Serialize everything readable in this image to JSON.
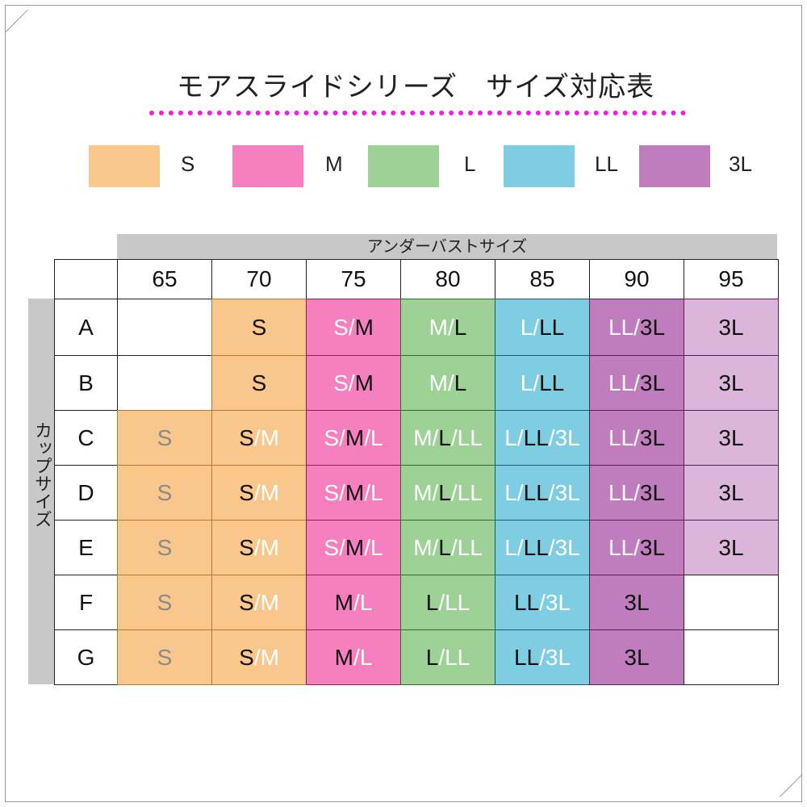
{
  "title": "モアスライドシリーズ　サイズ対応表",
  "legend": [
    {
      "label": "S",
      "color": "#f9c78c"
    },
    {
      "label": "M",
      "color": "#f67fbf"
    },
    {
      "label": "L",
      "color": "#9dd196"
    },
    {
      "label": "LL",
      "color": "#7fcde2"
    },
    {
      "label": "3L",
      "color": "#c07dbd"
    }
  ],
  "table": {
    "column_group_label": "アンダーバストサイズ",
    "row_group_label": "カップサイズ",
    "columns": [
      {
        "label": "65",
        "primary": "S",
        "color": "#f9c78c",
        "border": "#b07a30",
        "muted": true
      },
      {
        "label": "70",
        "primary": "S",
        "color": "#f9c78c",
        "border": "#b07a30"
      },
      {
        "label": "75",
        "primary": "M",
        "color": "#f67fbf",
        "border": "#8a1f5a"
      },
      {
        "label": "80",
        "primary": "L",
        "color": "#9dd196",
        "border": "#2f6a2a"
      },
      {
        "label": "85",
        "primary": "LL",
        "color": "#7fcde2",
        "border": "#1f5a6a"
      },
      {
        "label": "90",
        "primary": "3L",
        "color": "#c07dbd",
        "border": "#5a1f5a"
      },
      {
        "label": "95",
        "primary": "3L",
        "color": "#dcb6da",
        "border": "#5a1f5a"
      }
    ],
    "rows": [
      {
        "label": "A",
        "cells": [
          "",
          "S",
          "S/M",
          "M/L",
          "L/LL",
          "LL/3L",
          "3L"
        ]
      },
      {
        "label": "B",
        "cells": [
          "",
          "S",
          "S/M",
          "M/L",
          "L/LL",
          "LL/3L",
          "3L"
        ]
      },
      {
        "label": "C",
        "cells": [
          "S",
          "S/M",
          "S/M/L",
          "M/L/LL",
          "L/LL/3L",
          "LL/3L",
          "3L"
        ]
      },
      {
        "label": "D",
        "cells": [
          "S",
          "S/M",
          "S/M/L",
          "M/L/LL",
          "L/LL/3L",
          "LL/3L",
          "3L"
        ]
      },
      {
        "label": "E",
        "cells": [
          "S",
          "S/M",
          "S/M/L",
          "M/L/LL",
          "L/LL/3L",
          "LL/3L",
          "3L"
        ]
      },
      {
        "label": "F",
        "cells": [
          "S",
          "S/M",
          "M/L",
          "L/LL",
          "LL/3L",
          "3L",
          ""
        ]
      },
      {
        "label": "G",
        "cells": [
          "S",
          "S/M",
          "M/L",
          "L/LL",
          "LL/3L",
          "3L",
          ""
        ]
      }
    ]
  }
}
